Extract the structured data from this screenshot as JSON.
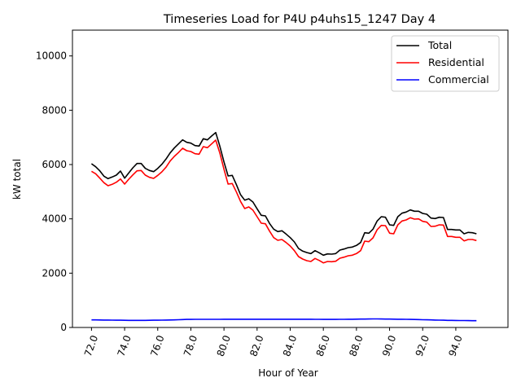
{
  "chart_data": {
    "type": "line",
    "title": "Timeseries Load for P4U p4uhs15_1247  Day 4",
    "xlabel": "Hour of Year",
    "ylabel": "kW total",
    "xlim": [
      70.85,
      97.15
    ],
    "ylim": [
      0,
      10950
    ],
    "xticks": [
      72,
      74,
      76,
      78,
      80,
      82,
      84,
      86,
      88,
      90,
      92,
      94
    ],
    "xtick_labels": [
      "72.0",
      "74.0",
      "76.0",
      "78.0",
      "80.0",
      "82.0",
      "84.0",
      "86.0",
      "88.0",
      "90.0",
      "92.0",
      "94.0"
    ],
    "yticks": [
      0,
      2000,
      4000,
      6000,
      8000,
      10000
    ],
    "ytick_labels": [
      "0",
      "2000",
      "4000",
      "6000",
      "8000",
      "10000"
    ],
    "legend_position": "top-right",
    "x_start": 72.0,
    "x_step": 0.25,
    "series": [
      {
        "name": "Total",
        "color": "#000000",
        "values": [
          6030,
          5920,
          5770,
          5570,
          5480,
          5540,
          5610,
          5760,
          5500,
          5690,
          5880,
          6040,
          6040,
          5860,
          5780,
          5740,
          5860,
          6010,
          6200,
          6430,
          6610,
          6760,
          6910,
          6820,
          6790,
          6700,
          6680,
          6950,
          6910,
          7050,
          7180,
          6680,
          6100,
          5580,
          5600,
          5260,
          4890,
          4690,
          4740,
          4620,
          4370,
          4130,
          4110,
          3830,
          3620,
          3530,
          3560,
          3440,
          3310,
          3150,
          2910,
          2810,
          2760,
          2720,
          2830,
          2750,
          2660,
          2710,
          2700,
          2720,
          2850,
          2890,
          2940,
          2960,
          3020,
          3130,
          3490,
          3470,
          3620,
          3920,
          4080,
          4060,
          3780,
          3760,
          4080,
          4210,
          4250,
          4330,
          4280,
          4280,
          4200,
          4170,
          4030,
          4010,
          4060,
          4050,
          3610,
          3610,
          3590,
          3590,
          3450,
          3500,
          3490,
          3450
        ]
      },
      {
        "name": "Residential",
        "color": "#ff0000",
        "values": [
          5750,
          5660,
          5500,
          5330,
          5220,
          5270,
          5350,
          5470,
          5280,
          5460,
          5620,
          5770,
          5780,
          5610,
          5530,
          5490,
          5600,
          5730,
          5900,
          6130,
          6300,
          6440,
          6600,
          6510,
          6480,
          6400,
          6380,
          6660,
          6620,
          6760,
          6900,
          6430,
          5830,
          5280,
          5300,
          4990,
          4640,
          4380,
          4440,
          4320,
          4080,
          3840,
          3820,
          3550,
          3310,
          3210,
          3240,
          3130,
          3000,
          2830,
          2610,
          2520,
          2460,
          2430,
          2540,
          2470,
          2380,
          2430,
          2420,
          2440,
          2550,
          2590,
          2640,
          2660,
          2720,
          2830,
          3180,
          3160,
          3300,
          3600,
          3760,
          3750,
          3470,
          3450,
          3780,
          3920,
          3960,
          4040,
          3990,
          4000,
          3910,
          3880,
          3720,
          3730,
          3780,
          3770,
          3350,
          3350,
          3320,
          3320,
          3190,
          3240,
          3240,
          3200
        ]
      },
      {
        "name": "Commercial",
        "color": "#0000ff",
        "values": [
          280,
          278,
          276,
          274,
          272,
          270,
          268,
          266,
          264,
          262,
          262,
          262,
          262,
          262,
          264,
          266,
          268,
          270,
          272,
          276,
          280,
          286,
          292,
          296,
          298,
          300,
          300,
          300,
          300,
          300,
          300,
          300,
          302,
          302,
          302,
          304,
          304,
          304,
          304,
          304,
          304,
          304,
          304,
          304,
          302,
          302,
          302,
          302,
          302,
          302,
          302,
          302,
          302,
          302,
          300,
          300,
          298,
          298,
          298,
          298,
          300,
          300,
          302,
          304,
          306,
          308,
          310,
          312,
          314,
          314,
          312,
          310,
          308,
          306,
          304,
          302,
          300,
          298,
          294,
          290,
          286,
          282,
          278,
          274,
          270,
          266,
          262,
          260,
          258,
          256,
          254,
          252,
          250,
          248
        ]
      }
    ]
  }
}
